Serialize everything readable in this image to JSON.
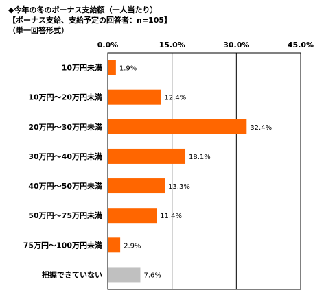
{
  "title_lines": [
    "◆今年の冬のボーナス支給額（一人当たり）",
    "【ボーナス支給、支給予定の回答者：n=105】",
    "（単一回答形式）"
  ],
  "colors": {
    "bar": "#ff6600",
    "bar_unknown": "#c0c0c0",
    "grid": "#000000"
  },
  "chart_data": {
    "type": "bar",
    "orientation": "horizontal",
    "categories": [
      "10万円未満",
      "10万円～20万円未満",
      "20万円～30万円未満",
      "30万円～40万円未満",
      "40万円～50万円未満",
      "50万円～75万円未満",
      "75万円～100万円未満",
      "把握できていない"
    ],
    "values": [
      1.9,
      12.4,
      32.4,
      18.1,
      13.3,
      11.4,
      2.9,
      7.6
    ],
    "value_labels": [
      "1.9%",
      "12.4%",
      "32.4%",
      "18.1%",
      "13.3%",
      "11.4%",
      "2.9%",
      "7.6%"
    ],
    "xlim": [
      0,
      45
    ],
    "xticks": [
      0,
      15,
      30,
      45
    ],
    "xtick_labels": [
      "0.0%",
      "15.0%",
      "30.0%",
      "45.0%"
    ],
    "xlabel": "",
    "ylabel": "",
    "grid": true,
    "legend": "none"
  }
}
